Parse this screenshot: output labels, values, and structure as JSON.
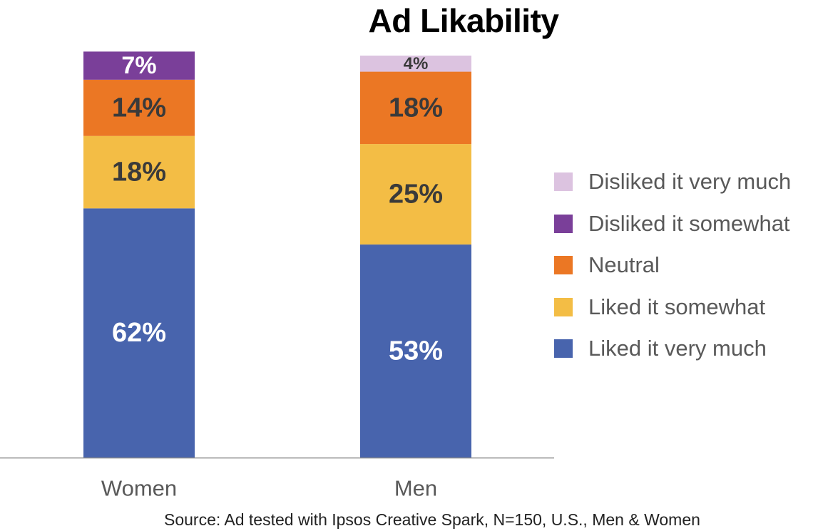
{
  "chart_data": {
    "type": "bar",
    "stacked": true,
    "title": "Ad Likability",
    "xlabel": "",
    "ylabel": "",
    "categories": [
      "Women",
      "Men"
    ],
    "ylim": [
      0,
      100
    ],
    "grid": false,
    "legend_position": "right",
    "series": [
      {
        "name": "Liked it very much",
        "color": "#4864ad",
        "values": [
          62,
          53
        ],
        "labels": [
          "62%",
          "53%"
        ],
        "label_color": "#ffffff"
      },
      {
        "name": "Liked it somewhat",
        "color": "#f3bd45",
        "values": [
          18,
          25
        ],
        "labels": [
          "18%",
          "25%"
        ],
        "label_color": "#3a3a3a"
      },
      {
        "name": "Neutral",
        "color": "#eb7724",
        "values": [
          14,
          18
        ],
        "labels": [
          "14%",
          "18%"
        ],
        "label_color": "#3a3a3a"
      },
      {
        "name": "Disliked it somewhat",
        "color": "#7a3f99",
        "values": [
          7,
          0
        ],
        "labels": [
          "7%",
          ""
        ],
        "label_color": "#ffffff"
      },
      {
        "name": "Disliked it very much",
        "color": "#dcc3e0",
        "values": [
          0,
          4
        ],
        "labels": [
          "",
          "4%"
        ],
        "label_color": "#3a3a3a"
      }
    ],
    "legend_order": [
      "Disliked it very much",
      "Disliked it somewhat",
      "Neutral",
      "Liked it somewhat",
      "Liked it very much"
    ],
    "source": "Source: Ad tested with Ipsos Creative Spark, N=150, U.S., Men & Women"
  }
}
